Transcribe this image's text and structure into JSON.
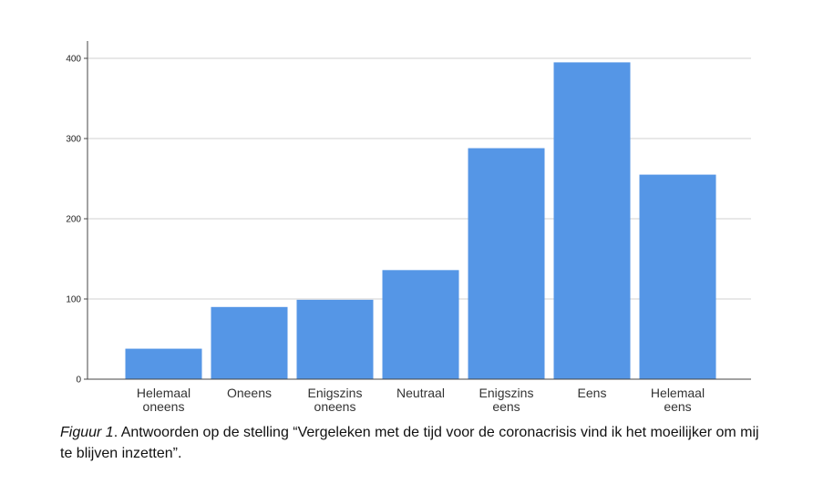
{
  "chart_data": {
    "type": "bar",
    "categories": [
      [
        "Helemaal",
        "oneens"
      ],
      [
        "Oneens"
      ],
      [
        "Enigszins",
        "oneens"
      ],
      [
        "Neutraal"
      ],
      [
        "Enigszins",
        "eens"
      ],
      [
        "Eens"
      ],
      [
        "Helemaal",
        "eens"
      ]
    ],
    "values": [
      38,
      90,
      99,
      136,
      288,
      395,
      255
    ],
    "ylim": [
      0,
      400
    ],
    "yticks": [
      0,
      100,
      200,
      300,
      400
    ],
    "grid": true,
    "bar_color": "#5596e6"
  },
  "caption": {
    "label": "Figuur 1",
    "text": ". Antwoorden op de stelling “Vergeleken met de tijd voor de coronacrisis vind ik het moeilijker om mij te blijven inzetten”."
  }
}
